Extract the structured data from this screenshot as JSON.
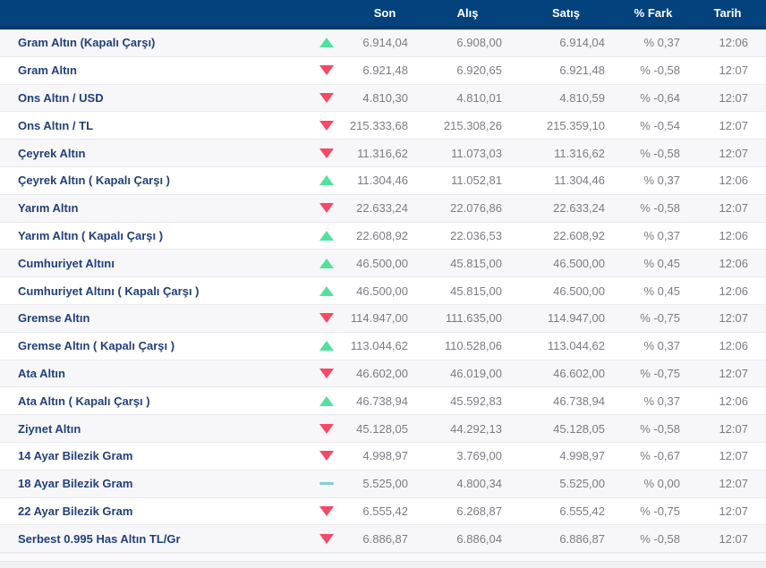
{
  "colors": {
    "header_bg": "#04427d",
    "header_edge": "#033a6e",
    "label": "#21407c",
    "value": "#7b7b84",
    "up": "#52e19c",
    "down": "#f74866",
    "neutral": "#7fcfd4"
  },
  "table": {
    "header": {
      "son": "Son",
      "alis": "Alış",
      "satis": "Satış",
      "fark": "% Fark",
      "tarih": "Tarih"
    },
    "rows": [
      {
        "name": "Gram Altın (Kapalı Çarşı)",
        "direction": "up",
        "son": "6.914,04",
        "alis": "6.908,00",
        "satis": "6.914,04",
        "fark": "% 0,37",
        "tarih": "12:06"
      },
      {
        "name": "Gram Altın",
        "direction": "down",
        "son": "6.921,48",
        "alis": "6.920,65",
        "satis": "6.921,48",
        "fark": "% -0,58",
        "tarih": "12:07"
      },
      {
        "name": "Ons Altın / USD",
        "direction": "down",
        "son": "4.810,30",
        "alis": "4.810,01",
        "satis": "4.810,59",
        "fark": "% -0,64",
        "tarih": "12:07"
      },
      {
        "name": "Ons Altın / TL",
        "direction": "down",
        "son": "215.333,68",
        "alis": "215.308,26",
        "satis": "215.359,10",
        "fark": "% -0,54",
        "tarih": "12:07"
      },
      {
        "name": "Çeyrek Altın",
        "direction": "down",
        "son": "11.316,62",
        "alis": "11.073,03",
        "satis": "11.316,62",
        "fark": "% -0,58",
        "tarih": "12:07"
      },
      {
        "name": "Çeyrek Altın ( Kapalı Çarşı )",
        "direction": "up",
        "son": "11.304,46",
        "alis": "11.052,81",
        "satis": "11.304,46",
        "fark": "% 0,37",
        "tarih": "12:06"
      },
      {
        "name": "Yarım Altın",
        "direction": "down",
        "son": "22.633,24",
        "alis": "22.076,86",
        "satis": "22.633,24",
        "fark": "% -0,58",
        "tarih": "12:07"
      },
      {
        "name": "Yarım Altın ( Kapalı Çarşı )",
        "direction": "up",
        "son": "22.608,92",
        "alis": "22.036,53",
        "satis": "22.608,92",
        "fark": "% 0,37",
        "tarih": "12:06"
      },
      {
        "name": "Cumhuriyet Altını",
        "direction": "up",
        "son": "46.500,00",
        "alis": "45.815,00",
        "satis": "46.500,00",
        "fark": "% 0,45",
        "tarih": "12:06"
      },
      {
        "name": "Cumhuriyet Altını ( Kapalı Çarşı )",
        "direction": "up",
        "son": "46.500,00",
        "alis": "45.815,00",
        "satis": "46.500,00",
        "fark": "% 0,45",
        "tarih": "12:06"
      },
      {
        "name": "Gremse Altın",
        "direction": "down",
        "son": "114.947,00",
        "alis": "111.635,00",
        "satis": "114.947,00",
        "fark": "% -0,75",
        "tarih": "12:07"
      },
      {
        "name": "Gremse Altın ( Kapalı Çarşı )",
        "direction": "up",
        "son": "113.044,62",
        "alis": "110.528,06",
        "satis": "113.044,62",
        "fark": "% 0,37",
        "tarih": "12:06"
      },
      {
        "name": "Ata Altın",
        "direction": "down",
        "son": "46.602,00",
        "alis": "46.019,00",
        "satis": "46.602,00",
        "fark": "% -0,75",
        "tarih": "12:07"
      },
      {
        "name": "Ata Altın ( Kapalı Çarşı )",
        "direction": "up",
        "son": "46.738,94",
        "alis": "45.592,83",
        "satis": "46.738,94",
        "fark": "% 0,37",
        "tarih": "12:06"
      },
      {
        "name": "Ziynet Altın",
        "direction": "down",
        "son": "45.128,05",
        "alis": "44.292,13",
        "satis": "45.128,05",
        "fark": "% -0,58",
        "tarih": "12:07"
      },
      {
        "name": "14 Ayar Bilezik Gram",
        "direction": "down",
        "son": "4.998,97",
        "alis": "3.769,00",
        "satis": "4.998,97",
        "fark": "% -0,67",
        "tarih": "12:07"
      },
      {
        "name": "18 Ayar Bilezik Gram",
        "direction": "neutral",
        "son": "5.525,00",
        "alis": "4.800,34",
        "satis": "5.525,00",
        "fark": "% 0,00",
        "tarih": "12:07"
      },
      {
        "name": "22 Ayar Bilezik Gram",
        "direction": "down",
        "son": "6.555,42",
        "alis": "6.268,87",
        "satis": "6.555,42",
        "fark": "% -0,75",
        "tarih": "12:07"
      },
      {
        "name": "Serbest 0.995 Has Altın TL/Gr",
        "direction": "down",
        "son": "6.886,87",
        "alis": "6.886,04",
        "satis": "6.886,87",
        "fark": "% -0,58",
        "tarih": "12:07"
      }
    ]
  }
}
